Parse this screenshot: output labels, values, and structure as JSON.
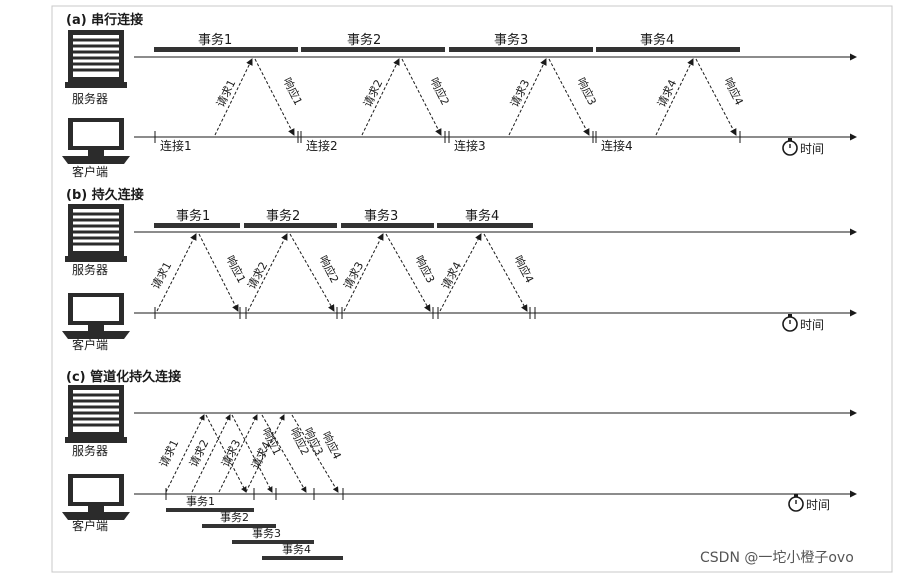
{
  "sections": [
    {
      "title": "(a) 串行连接",
      "server_label": "服务器",
      "client_label": "客户端",
      "time_label": "时间",
      "transactions": [
        "事务1",
        "事务2",
        "事务3",
        "事务4"
      ],
      "requests": [
        "请求1",
        "请求2",
        "请求3",
        "请求4"
      ],
      "responses": [
        "响应1",
        "响应2",
        "响应3",
        "响应4"
      ],
      "connections": [
        "连接1",
        "连接2",
        "连接3",
        "连接4"
      ]
    },
    {
      "title": "(b) 持久连接",
      "server_label": "服务器",
      "client_label": "客户端",
      "time_label": "时间",
      "transactions": [
        "事务1",
        "事务2",
        "事务3",
        "事务4"
      ],
      "requests": [
        "请求1",
        "请求2",
        "请求3",
        "请求4"
      ],
      "responses": [
        "响应1",
        "响应2",
        "响应3",
        "响应4"
      ]
    },
    {
      "title": "(c) 管道化持久连接",
      "server_label": "服务器",
      "client_label": "客户端",
      "time_label": "时间",
      "transactions": [
        "事务1",
        "事务2",
        "事务3",
        "事务4"
      ],
      "requests": [
        "请求1",
        "请求2",
        "请求3",
        "请求4"
      ],
      "responses": [
        "响应1",
        "响应2",
        "响应3",
        "响应4"
      ]
    }
  ],
  "watermark": "CSDN @一坨小橙子ovo"
}
